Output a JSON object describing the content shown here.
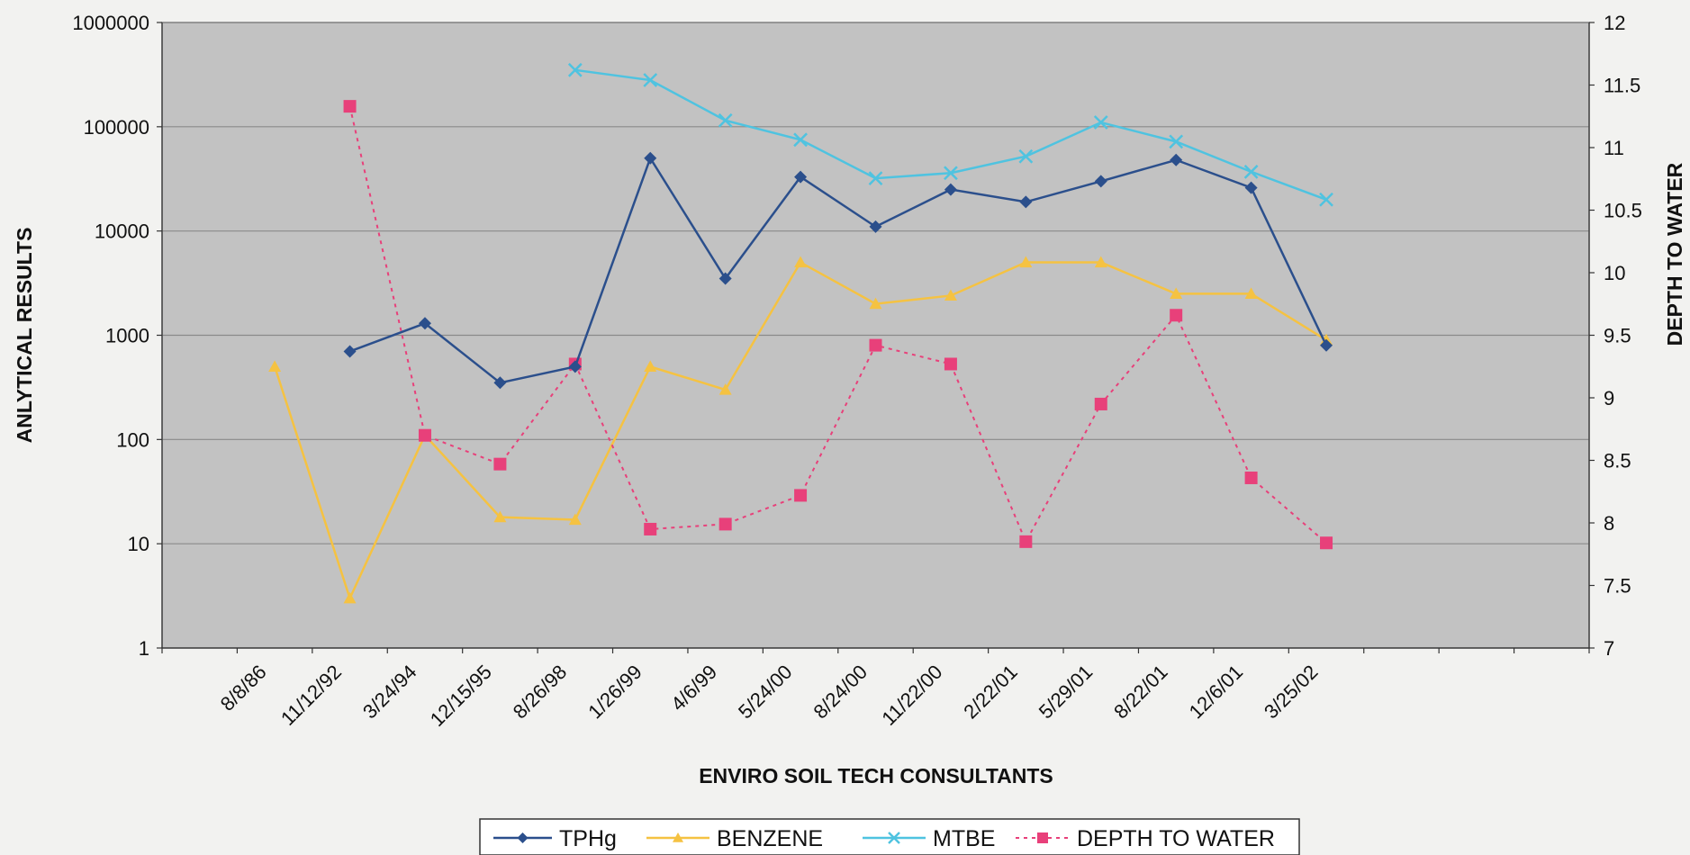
{
  "chart_data": {
    "type": "line",
    "categories": [
      "8/8/86",
      "11/12/92",
      "3/24/94",
      "12/15/95",
      "8/26/98",
      "1/26/99",
      "4/6/99",
      "5/24/00",
      "8/24/00",
      "11/22/00",
      "2/22/01",
      "5/29/01",
      "8/22/01",
      "12/6/01",
      "3/25/02"
    ],
    "xlabel": "ENVIRO SOIL TECH CONSULTANTS",
    "ylabel": "ANLYTICAL RESULTS",
    "y2label": "DEPTH TO WATER",
    "y_scale": "log",
    "ylim": [
      1,
      1000000
    ],
    "y_ticks": [
      "1",
      "10",
      "100",
      "1000",
      "10000",
      "100000",
      "1000000"
    ],
    "y2lim": [
      7,
      12
    ],
    "y2_ticks": [
      "7",
      "7.5",
      "8",
      "8.5",
      "9",
      "9.5",
      "10",
      "10.5",
      "11",
      "11.5",
      "12"
    ],
    "grid": "horizontal",
    "legend_position": "bottom",
    "series": [
      {
        "name": "TPHg",
        "axis": "left",
        "color": "#2b4f8c",
        "marker": "diamond",
        "values": [
          null,
          700,
          1300,
          350,
          500,
          50000,
          3500,
          33000,
          11000,
          25000,
          19000,
          30000,
          48000,
          26000,
          800
        ]
      },
      {
        "name": "BENZENE",
        "axis": "left",
        "color": "#f5c242",
        "marker": "triangle",
        "values": [
          500,
          3,
          110,
          18,
          17,
          500,
          300,
          5000,
          2000,
          2400,
          5000,
          5000,
          2500,
          2500,
          900
        ]
      },
      {
        "name": "MTBE",
        "axis": "left",
        "color": "#4fc3e0",
        "marker": "x",
        "values": [
          null,
          null,
          null,
          null,
          350000,
          280000,
          115000,
          75000,
          32000,
          36000,
          52000,
          110000,
          72000,
          37000,
          20000
        ]
      },
      {
        "name": "DEPTH TO WATER",
        "axis": "right",
        "color": "#e8407a",
        "marker": "square",
        "dashed": true,
        "values": [
          null,
          11.33,
          8.7,
          8.47,
          9.27,
          7.95,
          7.99,
          8.22,
          9.42,
          9.27,
          7.85,
          8.95,
          9.66,
          8.36,
          7.84
        ]
      }
    ]
  }
}
